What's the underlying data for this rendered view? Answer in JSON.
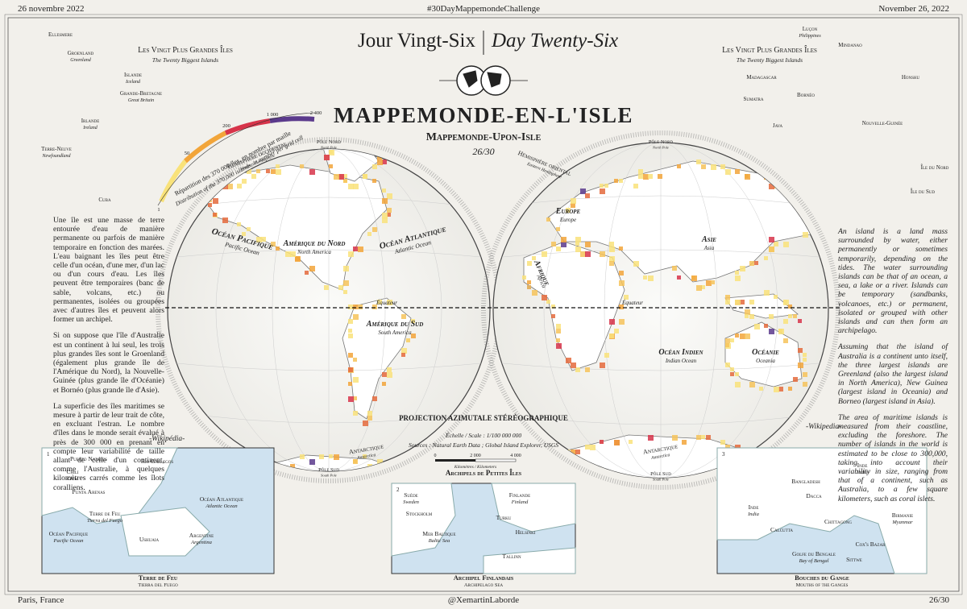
{
  "header": {
    "left": "26 novembre 2022",
    "center": "#30DayMappemondeChallenge",
    "right": "November 26, 2022"
  },
  "footer": {
    "left": "Paris, France",
    "center": "@XemartinLaborde",
    "right": "26/30"
  },
  "title": {
    "fr": "Jour Vingt-Six",
    "en": "Day Twenty-Six",
    "main": "Mappemonde-en-l'Isle",
    "sub": "Mappemonde-Upon-Isle",
    "number": "26/30"
  },
  "legend": {
    "title": "Répartition des 370 000 îles, en nombre par maille",
    "subtitle": "Distribution of the 370,000 islands, in number per grid cell",
    "ticks": [
      "1",
      "50",
      "200",
      "1 000",
      "2 400"
    ]
  },
  "biggest_left": {
    "title_fr": "Les Vingt Plus Grandes Îles",
    "title_en": "The Twenty Biggest Islands",
    "islands": [
      {
        "fr": "Ellesmere"
      },
      {
        "fr": "Groenland",
        "en": "Greenland"
      },
      {
        "fr": "Islande",
        "en": "Iceland"
      },
      {
        "fr": "Grande-Bretagne",
        "en": "Great Britain"
      },
      {
        "fr": "Irlande",
        "en": "Ireland"
      },
      {
        "fr": "Terre-Neuve",
        "en": "Newfoundland"
      },
      {
        "fr": "Cuba"
      }
    ]
  },
  "biggest_right": {
    "title_fr": "Les Vingt Plus Grandes Îles",
    "title_en": "The Twenty Biggest Islands",
    "islands": [
      {
        "fr": "Luçon",
        "en": "Philippines"
      },
      {
        "fr": "Mindanao"
      },
      {
        "fr": "Madagascar"
      },
      {
        "fr": "Bornéo"
      },
      {
        "fr": "Sumatra"
      },
      {
        "fr": "Java"
      },
      {
        "fr": "Honshu"
      },
      {
        "fr": "Nouvelle-Guinée"
      },
      {
        "fr": "Île du Nord"
      },
      {
        "fr": "Île du Sud"
      }
    ]
  },
  "text_fr": {
    "paragraphs": [
      "Une île est une masse de terre entourée d'eau de manière permanente ou parfois de manière temporaire en fonction des marées. L'eau baignant les îles peut être celle d'un océan, d'une mer, d'un lac ou d'un cours d'eau. Les îles peuvent être temporaires (banc de sable, volcans, etc.) ou permanentes, isolées ou groupées avec d'autres îles et peuvent alors former un archipel.",
      "Si on suppose que l'île d'Australie est un continent à lui seul, les trois plus grandes îles sont le Groenland (également plus grande île de l'Amérique du Nord), la Nouvelle-Guinée (plus grande île d'Océanie) et Bornéo (plus grande île d'Asie).",
      "La superficie des îles maritimes se mesure à partir de leur trait de côte, en excluant l'estran. Le nombre d'îles dans le monde serait évalué à près de 300 000 en prenant en compte leur variabilité de taille allant de celle d'un continent, comme l'Australie, à quelques kilomètres carrés comme les îlots coralliens."
    ],
    "source": "-Wikipédia-"
  },
  "text_en": {
    "paragraphs": [
      "An island is a land mass surrounded by water, either permanently or sometimes temporarily, depending on the tides. The water surrounding islands can be that of an ocean, a sea, a lake or a river. Islands can be temporary (sandbanks, volcanoes, etc.) or permanent, isolated or grouped with other islands and can then form an archipelago.",
      "Assuming that the island of Australia is a continent unto itself, the three largest islands are Greenland (also the largest island in North America), New Guinea (largest island in Oceania) and Borneo (largest island in Asia).",
      "The area of maritime islands is measured from their coastline, excluding the foreshore. The number of islands in the world is estimated to be close to 300,000, taking into account their variability in size, ranging from that of a continent, such as Australia, to a few square kilometers, such as coral islets."
    ],
    "source": "-Wikipedia-"
  },
  "map_labels": [
    {
      "fr": "Hémisphère occidental",
      "en": "Western Hemisphere"
    },
    {
      "fr": "Hémisphère oriental",
      "en": "Eastern Hemisphere"
    },
    {
      "fr": "Pôle Nord",
      "en": "North Pole"
    },
    {
      "fr": "Pôle Sud",
      "en": "South Pole"
    },
    {
      "fr": "Océan Pacifique",
      "en": "Pacific Ocean"
    },
    {
      "fr": "Amérique du Nord",
      "en": "North America"
    },
    {
      "fr": "Océan Atlantique",
      "en": "Atlantic Ocean"
    },
    {
      "fr": "Amérique du Sud",
      "en": "South America"
    },
    {
      "fr": "Antarctique",
      "en": "Antarctica"
    },
    {
      "fr": "Europe",
      "en": "Europe"
    },
    {
      "fr": "Asie",
      "en": "Asia"
    },
    {
      "fr": "Afrique",
      "en": "Africa"
    },
    {
      "fr": "Océan Indien",
      "en": "Indian Ocean"
    },
    {
      "fr": "Océanie",
      "en": "Oceania"
    },
    {
      "fr": "Antarctique",
      "en": "Antarctica"
    },
    {
      "fr": "Pôle Nord",
      "en": "North Pole"
    },
    {
      "fr": "Pôle Sud",
      "en": "South Pole"
    }
  ],
  "equator": "Équateur",
  "projection": {
    "title": "Projection azimutale stéréographique",
    "scale": "Échelle / Scale : 1/100 000 000",
    "sources": "Sources : Natural Earth Data ; Global Island Explorer, USGS",
    "scale_ticks": [
      "0",
      "2 000",
      "4 000"
    ],
    "units": "Kilomètres / Kilometers"
  },
  "insets": {
    "heading": "Archipels de Petites Îles",
    "items": [
      {
        "number": "1",
        "title_fr": "Terre de Feu",
        "title_en": "Tierra del Fuego",
        "labels": [
          {
            "fr": "Puerto Natales"
          },
          {
            "fr": "Rio Gallegos"
          },
          {
            "fr": "Chili",
            "en": "Chile"
          },
          {
            "fr": "Punta Arenas"
          },
          {
            "fr": "Océan Atlantique",
            "en": "Atlantic Ocean"
          },
          {
            "fr": "Terre de Feu",
            "en": "Tierra del Fuego"
          },
          {
            "fr": "Océan Pacifique",
            "en": "Pacific Ocean"
          },
          {
            "fr": "Ushuaia"
          },
          {
            "fr": "Argentine",
            "en": "Argentina"
          }
        ]
      },
      {
        "number": "2",
        "title_fr": "Archipel Finlandais",
        "title_en": "Archipelago Sea",
        "labels": [
          {
            "fr": "Suède",
            "en": "Sweden"
          },
          {
            "fr": "Finlande",
            "en": "Finland"
          },
          {
            "fr": "Stockholm"
          },
          {
            "fr": "Turku"
          },
          {
            "fr": "Helsinki"
          },
          {
            "fr": "Mer Baltique",
            "en": "Baltic Sea"
          },
          {
            "fr": "Tallinn"
          }
        ]
      },
      {
        "number": "3",
        "title_fr": "Bouches du Gange",
        "title_en": "Mouths of the Ganges",
        "labels": [
          {
            "fr": "Inde",
            "en": "India"
          },
          {
            "fr": "Bangladesh"
          },
          {
            "fr": "Inde",
            "en": "India"
          },
          {
            "fr": "Dacca"
          },
          {
            "fr": "Birmanie",
            "en": "Myanmar"
          },
          {
            "fr": "Chittagong"
          },
          {
            "fr": "Calcutta"
          },
          {
            "fr": "Cox's Bazar"
          },
          {
            "fr": "Golfe du Bengale",
            "en": "Bay of Bengal"
          },
          {
            "fr": "Sittwe"
          }
        ]
      }
    ]
  }
}
